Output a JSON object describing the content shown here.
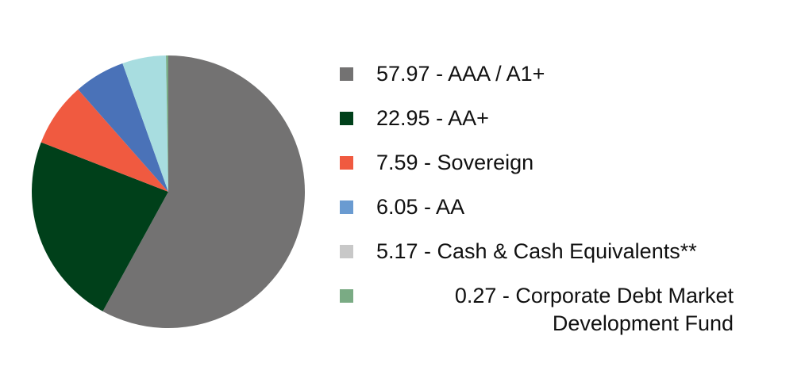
{
  "chart_data": {
    "type": "pie",
    "categories": [
      "57.97 - AAA / A1+",
      "22.95 - AA+",
      "7.59 - Sovereign",
      "6.05 - AA",
      "5.17 - Cash & Cash Equivalents**",
      "0.27 - Corporate Debt Market Development Fund"
    ],
    "values": [
      57.97,
      22.95,
      7.59,
      6.05,
      5.17,
      0.27
    ],
    "colors": [
      "#737272",
      "#00401a",
      "#f05a40",
      "#4a72b8",
      "#a8dde0",
      "#7aab84"
    ],
    "legend_colors": [
      "#737272",
      "#00401a",
      "#f05a40",
      "#6a9bd1",
      "#c8c8c8",
      "#7aab84"
    ],
    "legend": "right"
  }
}
